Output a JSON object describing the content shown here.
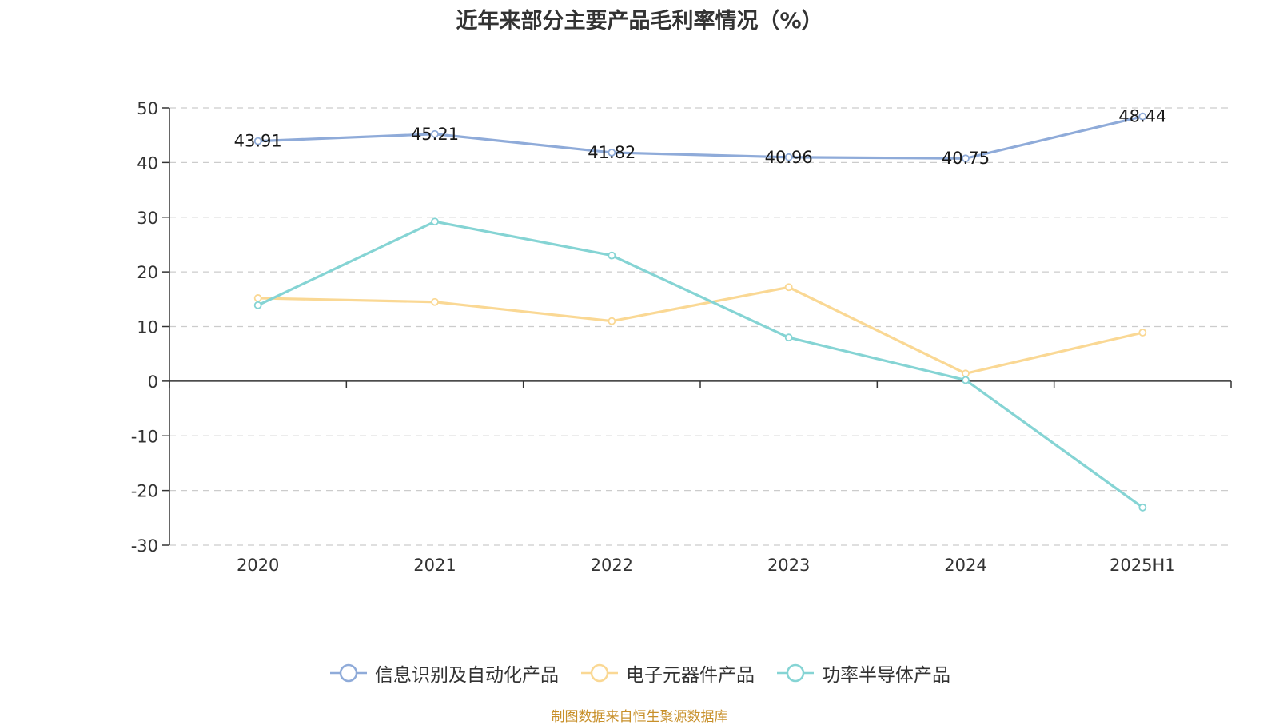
{
  "chart_data": {
    "type": "line",
    "title": "近年来部分主要产品毛利率情况（%）",
    "categories": [
      "2020",
      "2021",
      "2022",
      "2023",
      "2024",
      "2025H1"
    ],
    "ylim": [
      -30,
      50
    ],
    "yticks": [
      50,
      40,
      30,
      20,
      10,
      0,
      -10,
      -20,
      -30
    ],
    "grid": true,
    "legend_position": "bottom",
    "series": [
      {
        "name": "信息识别及自动化产品",
        "color": "#8fabd9",
        "values": [
          43.91,
          45.21,
          41.82,
          40.96,
          40.75,
          48.44
        ],
        "labels": [
          "43.91",
          "45.21",
          "41.82",
          "40.96",
          "40.75",
          "48.44"
        ]
      },
      {
        "name": "电子元器件产品",
        "color": "#fad894",
        "values": [
          15.2,
          14.5,
          11.0,
          17.2,
          1.4,
          8.9
        ]
      },
      {
        "name": "功率半导体产品",
        "color": "#85d4d4",
        "values": [
          13.9,
          29.2,
          23.0,
          8.0,
          0.2,
          -23.1
        ]
      }
    ]
  },
  "source": {
    "text": "制图数据来自恒生聚源数据库",
    "color": "#c8902a"
  }
}
